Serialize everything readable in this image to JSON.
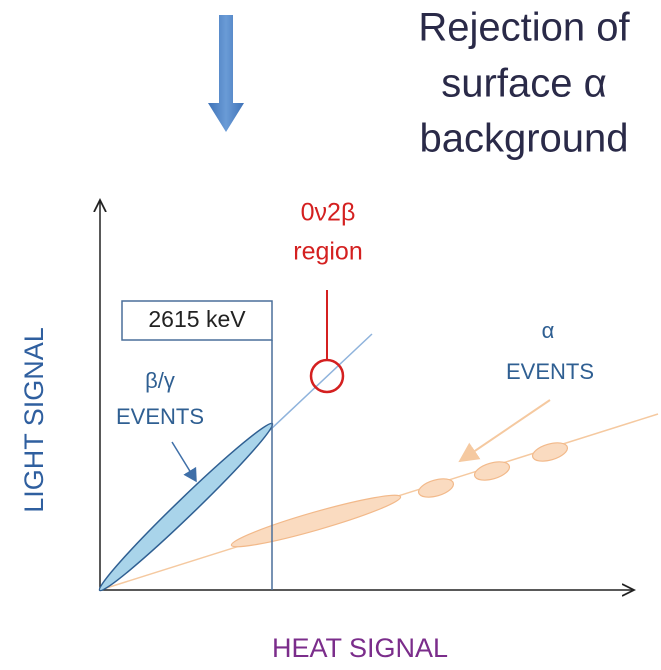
{
  "title": {
    "lines": [
      "Rejection of",
      "surface α",
      "background"
    ]
  },
  "region_label": {
    "lines": [
      "0ν2β",
      "region"
    ]
  },
  "energy_box": "2615 keV",
  "beta_gamma_label": {
    "lines": [
      "β/γ",
      "EVENTS"
    ]
  },
  "alpha_label": {
    "lines": [
      "α",
      "EVENTS"
    ]
  },
  "y_axis_label": "LIGHT SIGNAL",
  "x_axis_label": "HEAT SIGNAL"
}
